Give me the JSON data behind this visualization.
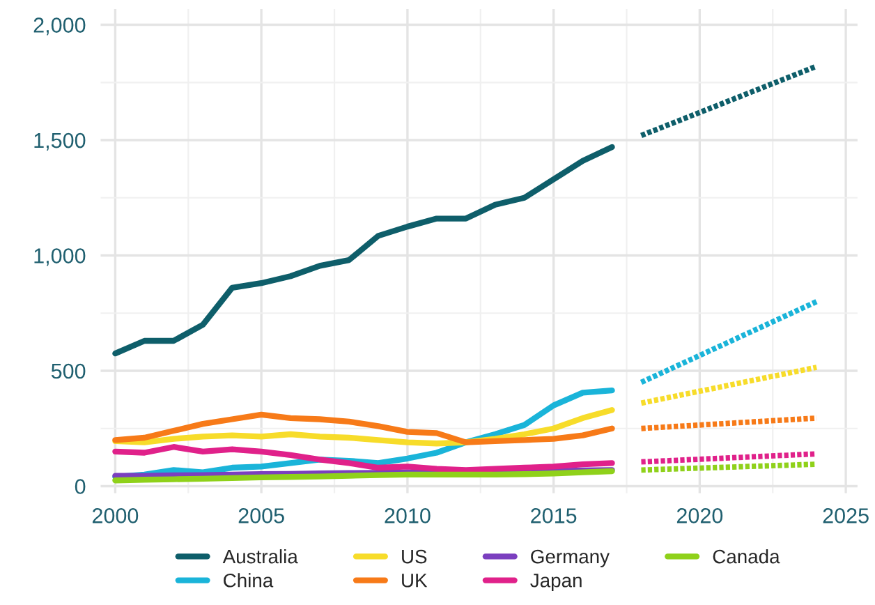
{
  "chart_data": {
    "type": "line",
    "xlim": [
      1999.5,
      2025.4
    ],
    "xticks": [
      2000,
      2005,
      2010,
      2015,
      2020,
      2025
    ],
    "ylim": [
      -30,
      2068
    ],
    "yticks": [
      0,
      {
        "value": 500,
        "label": "500"
      },
      {
        "value": 1000,
        "label": "1,000"
      },
      {
        "value": 1500,
        "label": "1,500"
      },
      {
        "value": 2000,
        "label": "2,000"
      }
    ],
    "grid": true,
    "legend": "bottom",
    "line_style": "solid",
    "marker": "none",
    "series": [
      {
        "name": "Australia",
        "color": "#0e5e6a",
        "x": [
          2000,
          2001,
          2002,
          2003,
          2004,
          2005,
          2006,
          2007,
          2008,
          2009,
          2010,
          2011,
          2012,
          2013,
          2014,
          2015,
          2016,
          2017
        ],
        "values": [
          575,
          630,
          630,
          700,
          860,
          880,
          910,
          955,
          980,
          1085,
          1125,
          1160,
          1160,
          1220,
          1250,
          1330,
          1410,
          1470
        ]
      },
      {
        "name": "China",
        "color": "#1ab4d9",
        "x": [
          2000,
          2001,
          2002,
          2003,
          2004,
          2005,
          2006,
          2007,
          2008,
          2009,
          2010,
          2011,
          2012,
          2013,
          2014,
          2015,
          2016,
          2017
        ],
        "values": [
          40,
          50,
          70,
          60,
          80,
          85,
          100,
          115,
          110,
          100,
          120,
          145,
          190,
          225,
          265,
          350,
          405,
          415
        ]
      },
      {
        "name": "US",
        "color": "#f7dc2a",
        "x": [
          2000,
          2001,
          2002,
          2003,
          2004,
          2005,
          2006,
          2007,
          2008,
          2009,
          2010,
          2011,
          2012,
          2013,
          2014,
          2015,
          2016,
          2017
        ],
        "values": [
          195,
          190,
          205,
          215,
          220,
          215,
          225,
          215,
          210,
          200,
          190,
          185,
          190,
          205,
          225,
          250,
          295,
          330
        ]
      },
      {
        "name": "UK",
        "color": "#f77a18",
        "x": [
          2000,
          2001,
          2002,
          2003,
          2004,
          2005,
          2006,
          2007,
          2008,
          2009,
          2010,
          2011,
          2012,
          2013,
          2014,
          2015,
          2016,
          2017
        ],
        "values": [
          200,
          210,
          240,
          270,
          290,
          310,
          295,
          290,
          280,
          260,
          235,
          230,
          190,
          195,
          200,
          205,
          220,
          250
        ]
      },
      {
        "name": "Germany",
        "color": "#7b3fbf",
        "x": [
          2000,
          2001,
          2002,
          2003,
          2004,
          2005,
          2006,
          2007,
          2008,
          2009,
          2010,
          2011,
          2012,
          2013,
          2014,
          2015,
          2016,
          2017
        ],
        "values": [
          45,
          45,
          47,
          48,
          50,
          52,
          53,
          55,
          57,
          58,
          60,
          60,
          60,
          62,
          63,
          65,
          68,
          70
        ]
      },
      {
        "name": "Japan",
        "color": "#e0218a",
        "x": [
          2000,
          2001,
          2002,
          2003,
          2004,
          2005,
          2006,
          2007,
          2008,
          2009,
          2010,
          2011,
          2012,
          2013,
          2014,
          2015,
          2016,
          2017
        ],
        "values": [
          150,
          145,
          170,
          150,
          160,
          150,
          135,
          115,
          100,
          80,
          85,
          75,
          70,
          75,
          80,
          85,
          95,
          100
        ]
      },
      {
        "name": "Canada",
        "color": "#8fd11a",
        "x": [
          2000,
          2001,
          2002,
          2003,
          2004,
          2005,
          2006,
          2007,
          2008,
          2009,
          2010,
          2011,
          2012,
          2013,
          2014,
          2015,
          2016,
          2017
        ],
        "values": [
          25,
          28,
          30,
          32,
          35,
          38,
          40,
          42,
          45,
          48,
          50,
          50,
          50,
          50,
          52,
          55,
          60,
          65
        ]
      },
      {
        "color": "#0e5e6a",
        "line_style": "dotted",
        "x": [
          2018,
          2024
        ],
        "values": [
          1520,
          1820
        ]
      },
      {
        "color": "#1ab4d9",
        "line_style": "dotted",
        "x": [
          2018,
          2024
        ],
        "values": [
          450,
          800
        ]
      },
      {
        "color": "#f7dc2a",
        "line_style": "dotted",
        "x": [
          2018,
          2024
        ],
        "values": [
          360,
          515
        ]
      },
      {
        "color": "#f77a18",
        "line_style": "dotted",
        "x": [
          2018,
          2024
        ],
        "values": [
          250,
          295
        ]
      },
      {
        "color": "#e0218a",
        "line_style": "dotted",
        "x": [
          2018,
          2024
        ],
        "values": [
          105,
          140
        ]
      },
      {
        "color": "#8fd11a",
        "line_style": "dotted",
        "x": [
          2018,
          2024
        ],
        "values": [
          70,
          95
        ]
      }
    ]
  }
}
